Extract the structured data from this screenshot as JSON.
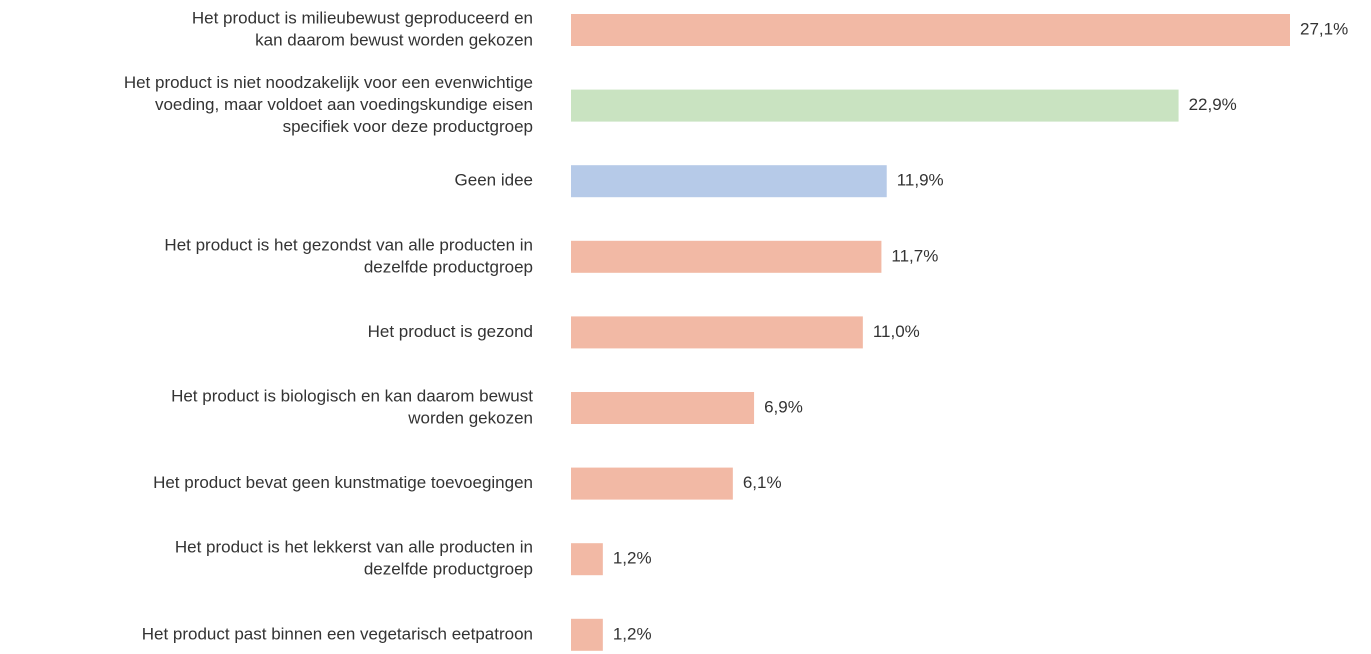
{
  "chart_data": {
    "type": "barh",
    "categories": [
      [
        "Het product is milieubewust geproduceerd en",
        "kan daarom bewust worden gekozen"
      ],
      [
        "Het product is niet noodzakelijk voor een evenwichtige",
        "voeding, maar voldoet aan voedingskundige eisen",
        "specifiek voor deze productgroep"
      ],
      [
        "Geen idee"
      ],
      [
        "Het product is het gezondst van alle producten in",
        "dezelfde productgroep"
      ],
      [
        "Het product is gezond"
      ],
      [
        "Het product is biologisch en kan daarom bewust",
        "worden gekozen"
      ],
      [
        "Het product bevat geen kunstmatige toevoegingen"
      ],
      [
        "Het product is het lekkerst van alle producten in",
        "dezelfde productgroep"
      ],
      [
        "Het product past binnen een vegetarisch eetpatroon"
      ]
    ],
    "values": [
      27.1,
      22.9,
      11.9,
      11.7,
      11.0,
      6.9,
      6.1,
      1.2,
      1.2
    ],
    "value_labels": [
      "27,1%",
      "22,9%",
      "11,9%",
      "11,7%",
      "11,0%",
      "6,9%",
      "6,1%",
      "1,2%",
      "1,2%"
    ],
    "colors": [
      "#f2b9a5",
      "#c9e3c1",
      "#b6cae8",
      "#f2b9a5",
      "#f2b9a5",
      "#f2b9a5",
      "#f2b9a5",
      "#f2b9a5",
      "#f2b9a5"
    ]
  }
}
